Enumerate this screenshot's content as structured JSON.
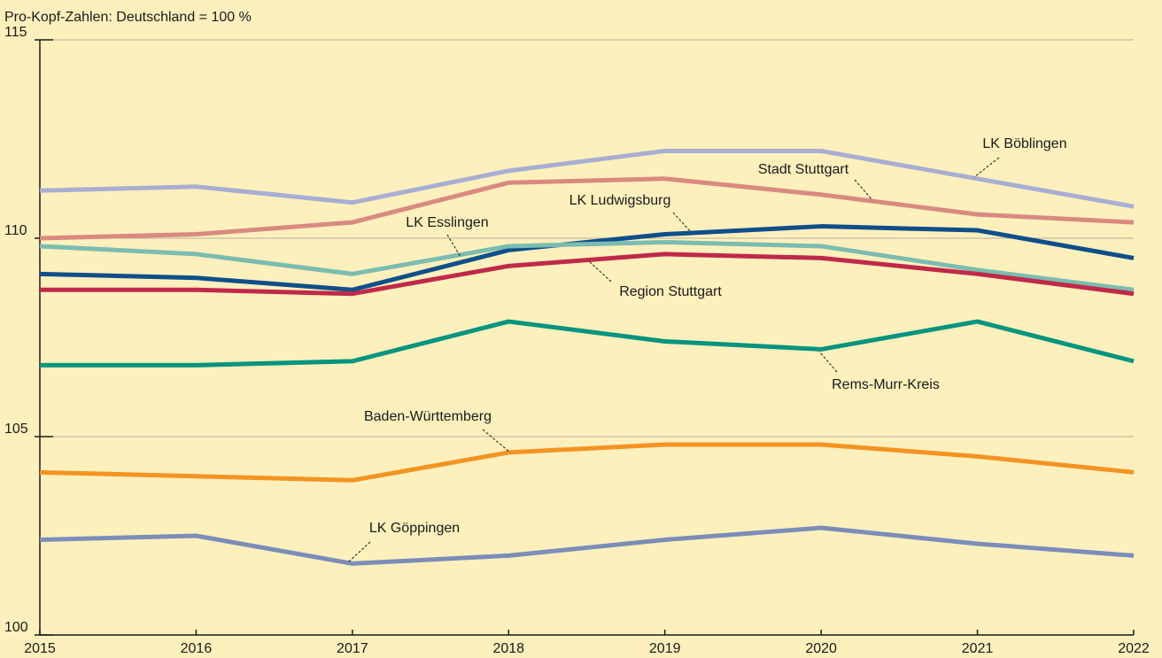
{
  "chart_data": {
    "type": "line",
    "subtitle": "Pro-Kopf-Zahlen: Deutschland = 100 %",
    "x": [
      2015,
      2016,
      2017,
      2018,
      2019,
      2020,
      2021,
      2022
    ],
    "xlim": [
      2015,
      2022
    ],
    "xticks": [
      2015,
      2016,
      2017,
      2018,
      2019,
      2020,
      2021,
      2022
    ],
    "ylim": [
      100,
      115
    ],
    "yticks": [
      100,
      105,
      110,
      115
    ],
    "grid": true,
    "series": [
      {
        "name": "LK Böblingen",
        "color": "#a8aed2",
        "values": [
          111.2,
          111.3,
          110.9,
          111.7,
          112.2,
          112.2,
          111.5,
          110.8
        ]
      },
      {
        "name": "Stadt Stuttgart",
        "color": "#d98a80",
        "values": [
          110.0,
          110.1,
          110.4,
          111.4,
          111.5,
          111.1,
          110.6,
          110.4
        ]
      },
      {
        "name": "LK Ludwigsburg",
        "color": "#0e4f8a",
        "values": [
          109.1,
          109.0,
          108.7,
          109.7,
          110.1,
          110.3,
          110.2,
          109.5
        ]
      },
      {
        "name": "LK Esslingen",
        "color": "#7bbcb0",
        "values": [
          109.8,
          109.6,
          109.1,
          109.8,
          109.9,
          109.8,
          109.2,
          108.7
        ]
      },
      {
        "name": "Region Stuttgart",
        "color": "#c0294a",
        "values": [
          108.7,
          108.7,
          108.6,
          109.3,
          109.6,
          109.5,
          109.1,
          108.6
        ]
      },
      {
        "name": "Rems-Murr-Kreis",
        "color": "#009480",
        "values": [
          106.8,
          106.8,
          106.9,
          107.9,
          107.4,
          107.2,
          107.9,
          106.9
        ]
      },
      {
        "name": "Baden-Württemberg",
        "color": "#f39322",
        "values": [
          104.1,
          104.0,
          103.9,
          104.6,
          104.8,
          104.8,
          104.5,
          104.1
        ]
      },
      {
        "name": "LK Göppingen",
        "color": "#7b8db8",
        "values": [
          102.4,
          102.5,
          101.8,
          102.0,
          102.4,
          102.7,
          102.3,
          102.0
        ]
      }
    ]
  }
}
